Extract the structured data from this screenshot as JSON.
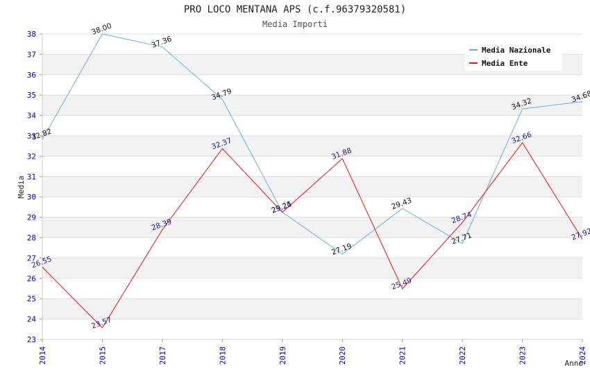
{
  "chart_data": {
    "type": "line",
    "title": "PRO LOCO MENTANA APS (c.f.96379320581)",
    "subtitle": "Media Importi",
    "xlabel": "Anno",
    "ylabel": "Media",
    "categories": [
      "2014",
      "2015",
      "2017",
      "2018",
      "2019",
      "2020",
      "2021",
      "2022",
      "2023",
      "2024"
    ],
    "ylim": [
      23,
      38
    ],
    "yticks": [
      "23",
      "24",
      "25",
      "26",
      "27",
      "28",
      "29",
      "30",
      "31",
      "32",
      "33",
      "34",
      "35",
      "36",
      "37",
      "38"
    ],
    "grid": true,
    "legend_position": "top-right",
    "series": [
      {
        "name": "Media Nazionale",
        "color": "#6aaee8",
        "label_color": "#111111",
        "values": [
          32.82,
          38.0,
          37.36,
          34.79,
          29.25,
          27.19,
          29.43,
          27.71,
          34.32,
          34.68
        ],
        "labels": [
          "32.82",
          "38.00",
          "37.36",
          "34.79",
          "29.25",
          "27.19",
          "29.43",
          "27.71",
          "34.32",
          "34.68"
        ]
      },
      {
        "name": "Media Ente",
        "color": "#ee1111",
        "label_color": "#1a1a8c",
        "values": [
          26.55,
          23.57,
          28.39,
          32.37,
          29.24,
          31.88,
          25.49,
          28.74,
          32.66,
          27.92
        ],
        "labels": [
          "26.55",
          "23.57",
          "28.39",
          "32.37",
          "29.24",
          "31.88",
          "25.49",
          "28.74",
          "32.66",
          "27.92"
        ]
      }
    ]
  }
}
